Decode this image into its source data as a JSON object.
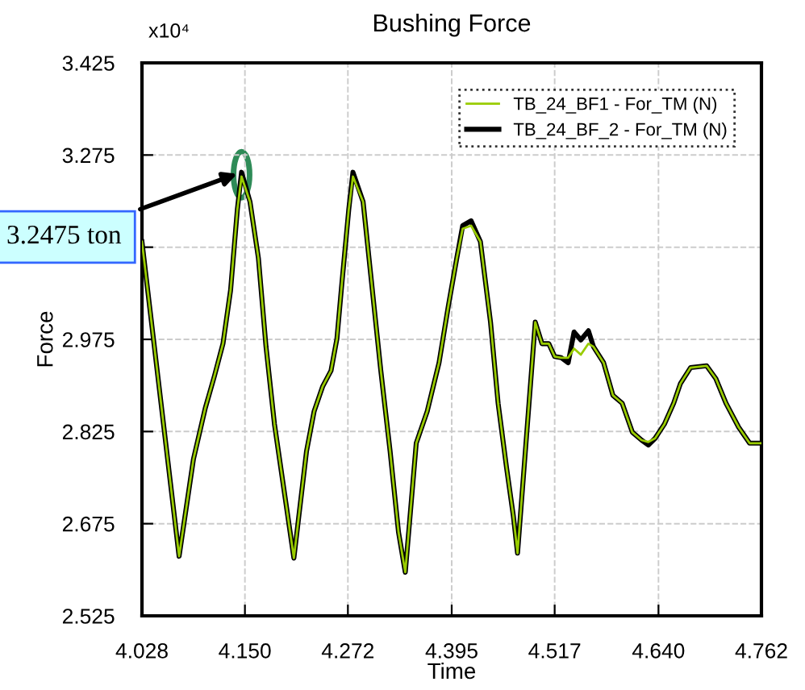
{
  "chart_data": {
    "type": "line",
    "title": "Bushing Force",
    "xlabel": "Time",
    "ylabel": "Force",
    "xlim": [
      4.028,
      4.762
    ],
    "xticks": [
      4.028,
      {
        "value": 4.15,
        "label": "4.150"
      },
      4.272,
      4.395,
      4.517,
      {
        "value": 4.64,
        "label": "4.640"
      },
      4.762
    ],
    "ylim": [
      2.525,
      3.425
    ],
    "yticks": [
      2.525,
      2.675,
      2.825,
      2.975,
      {
        "value": 3.125,
        "label": null
      },
      3.275,
      3.425
    ],
    "grid": true,
    "legend": "top right",
    "line_style": "solid",
    "marker": "none",
    "annotations": [
      "x10⁴",
      {
        "text": "3.2475 ton",
        "x": 4.146,
        "y": 3.247
      }
    ],
    "x": [
      4.028,
      4.072,
      4.089,
      4.103,
      4.114,
      4.124,
      4.133,
      4.141,
      4.146,
      4.156,
      4.166,
      4.175,
      4.185,
      4.198,
      4.208,
      4.223,
      4.232,
      4.242,
      4.252,
      4.259,
      4.265,
      4.273,
      4.278,
      4.29,
      4.299,
      4.311,
      4.322,
      4.332,
      4.34,
      4.353,
      4.366,
      4.38,
      4.391,
      4.401,
      4.408,
      4.418,
      4.429,
      4.441,
      4.45,
      4.46,
      4.468,
      4.473,
      4.483,
      4.494,
      4.502,
      4.51,
      4.517,
      4.525,
      4.533,
      4.54,
      4.548,
      4.557,
      4.563,
      4.575,
      4.586,
      4.597,
      4.609,
      4.62,
      4.628,
      4.636,
      4.647,
      4.658,
      4.666,
      4.678,
      4.697,
      4.708,
      4.72,
      4.735,
      4.748,
      4.762
    ],
    "series": [
      {
        "name": "TB_24_BF1 - For_TM (N)",
        "color": "#99cc00",
        "values": [
          3.134,
          2.622,
          2.78,
          2.863,
          2.916,
          2.968,
          3.055,
          3.186,
          3.24,
          3.199,
          3.107,
          2.963,
          2.837,
          2.714,
          2.619,
          2.793,
          2.858,
          2.898,
          2.924,
          2.976,
          3.068,
          3.186,
          3.24,
          3.199,
          3.081,
          2.924,
          2.793,
          2.661,
          2.596,
          2.806,
          2.858,
          2.937,
          3.029,
          3.107,
          3.155,
          3.16,
          3.134,
          3.003,
          2.871,
          2.766,
          2.688,
          2.627,
          2.806,
          3.003,
          2.968,
          2.968,
          2.947,
          2.945,
          2.945,
          2.96,
          2.95,
          2.968,
          2.963,
          2.937,
          2.884,
          2.871,
          2.824,
          2.811,
          2.808,
          2.814,
          2.837,
          2.871,
          2.903,
          2.929,
          2.932,
          2.911,
          2.871,
          2.832,
          2.806,
          2.806
        ]
      },
      {
        "name": "TB_24_BF_2 - For_TM (N)",
        "color": "#000000",
        "values": [
          3.134,
          2.622,
          2.78,
          2.863,
          2.916,
          2.968,
          3.055,
          3.186,
          3.247,
          3.199,
          3.107,
          2.963,
          2.837,
          2.714,
          2.619,
          2.793,
          2.858,
          2.898,
          2.924,
          2.976,
          3.068,
          3.186,
          3.247,
          3.199,
          3.081,
          2.924,
          2.793,
          2.661,
          2.596,
          2.806,
          2.858,
          2.937,
          3.029,
          3.107,
          3.16,
          3.168,
          3.134,
          3.003,
          2.871,
          2.766,
          2.688,
          2.627,
          2.806,
          3.003,
          2.968,
          2.968,
          2.947,
          2.945,
          2.937,
          2.987,
          2.974,
          2.989,
          2.963,
          2.937,
          2.884,
          2.871,
          2.824,
          2.811,
          2.803,
          2.814,
          2.837,
          2.871,
          2.903,
          2.929,
          2.932,
          2.911,
          2.871,
          2.832,
          2.806,
          2.806
        ]
      }
    ]
  }
}
